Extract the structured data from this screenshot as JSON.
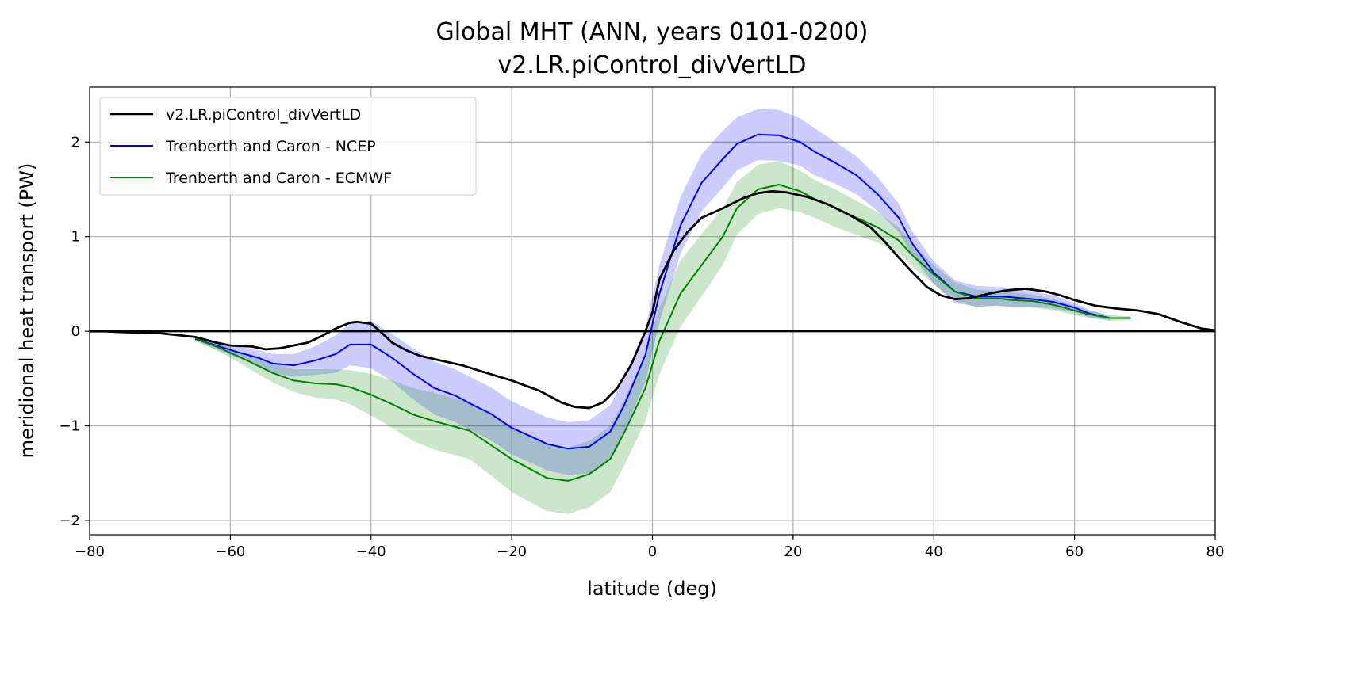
{
  "chart_data": {
    "type": "line",
    "title": "Global MHT (ANN, years 0101-0200)",
    "subtitle": "v2.LR.piControl_divVertLD",
    "xlabel": "latitude (deg)",
    "ylabel": "meridional heat transport (PW)",
    "xlim": [
      -80,
      80
    ],
    "ylim": [
      -2.15,
      2.58
    ],
    "xticks": [
      -80,
      -60,
      -40,
      -20,
      0,
      20,
      40,
      60,
      80
    ],
    "xtick_labels": [
      "−80",
      "−60",
      "−40",
      "−20",
      "0",
      "20",
      "40",
      "60",
      "80"
    ],
    "yticks": [
      -2,
      -1,
      0,
      1,
      2
    ],
    "ytick_labels": [
      "−2",
      "−1",
      "0",
      "1",
      "2"
    ],
    "grid": true,
    "legend_position": "top-left",
    "series": [
      {
        "name": "v2.LR.piControl_divVertLD",
        "color": "#000000",
        "x": [
          -80,
          -78,
          -75,
          -70,
          -65,
          -62,
          -60,
          -57,
          -55,
          -53,
          -51,
          -49,
          -47,
          -45,
          -43,
          -42,
          -40,
          -39,
          -37,
          -35,
          -33,
          -30,
          -27,
          -24,
          -20,
          -16,
          -13,
          -11,
          -9,
          -7,
          -5,
          -3,
          -1,
          0,
          1,
          3,
          5,
          7,
          10,
          13,
          15,
          17,
          19,
          22,
          25,
          28,
          31,
          33,
          35,
          37,
          39,
          41,
          43,
          45,
          48,
          50,
          53,
          56,
          58,
          60,
          63,
          66,
          69,
          72,
          75,
          78,
          80
        ],
        "y": [
          0,
          0,
          -0.01,
          -0.02,
          -0.06,
          -0.12,
          -0.15,
          -0.16,
          -0.19,
          -0.18,
          -0.15,
          -0.12,
          -0.05,
          0.03,
          0.09,
          0.1,
          0.08,
          0.02,
          -0.12,
          -0.2,
          -0.26,
          -0.31,
          -0.36,
          -0.43,
          -0.52,
          -0.63,
          -0.75,
          -0.8,
          -0.81,
          -0.75,
          -0.6,
          -0.35,
          0,
          0.2,
          0.55,
          0.85,
          1.05,
          1.2,
          1.3,
          1.41,
          1.46,
          1.48,
          1.47,
          1.42,
          1.34,
          1.23,
          1.1,
          0.95,
          0.78,
          0.62,
          0.47,
          0.38,
          0.34,
          0.35,
          0.4,
          0.43,
          0.45,
          0.42,
          0.38,
          0.33,
          0.27,
          0.24,
          0.22,
          0.18,
          0.1,
          0.03,
          0.01
        ]
      },
      {
        "name": "Trenberth and Caron - NCEP",
        "color": "#0000ff",
        "band_color": "#ccccff",
        "x": [
          -65,
          -62,
          -59,
          -56,
          -54,
          -51,
          -48,
          -45,
          -43,
          -40,
          -37,
          -34,
          -31,
          -28,
          -26,
          -23,
          -20,
          -17,
          -15,
          -12,
          -9,
          -6,
          -4,
          -1,
          1,
          4,
          7,
          10,
          12,
          15,
          18,
          21,
          23,
          26,
          29,
          32,
          35,
          37,
          40,
          43,
          46,
          49,
          51,
          54,
          57,
          60,
          62,
          65
        ],
        "y": [
          -0.08,
          -0.15,
          -0.22,
          -0.28,
          -0.34,
          -0.36,
          -0.31,
          -0.24,
          -0.14,
          -0.14,
          -0.28,
          -0.45,
          -0.6,
          -0.68,
          -0.76,
          -0.87,
          -1.02,
          -1.12,
          -1.19,
          -1.24,
          -1.22,
          -1.06,
          -0.78,
          -0.25,
          0.4,
          1.12,
          1.57,
          1.82,
          1.98,
          2.08,
          2.07,
          2.0,
          1.9,
          1.78,
          1.65,
          1.45,
          1.2,
          0.92,
          0.62,
          0.42,
          0.37,
          0.37,
          0.36,
          0.34,
          0.31,
          0.25,
          0.19,
          0.14
        ],
        "uncertainty": [
          0.02,
          0.04,
          0.06,
          0.08,
          0.1,
          0.12,
          0.15,
          0.2,
          0.22,
          0.25,
          0.25,
          0.27,
          0.28,
          0.28,
          0.28,
          0.28,
          0.28,
          0.28,
          0.28,
          0.28,
          0.28,
          0.28,
          0.28,
          0.28,
          0.3,
          0.3,
          0.3,
          0.3,
          0.28,
          0.27,
          0.27,
          0.25,
          0.25,
          0.22,
          0.2,
          0.18,
          0.15,
          0.13,
          0.12,
          0.12,
          0.11,
          0.1,
          0.1,
          0.08,
          0.07,
          0.05,
          0.04,
          0.02
        ]
      },
      {
        "name": "Trenberth and Caron - ECMWF",
        "color": "#008000",
        "band_color": "#cce6cc",
        "x": [
          -65,
          -62,
          -59,
          -57,
          -54,
          -51,
          -48,
          -45,
          -43,
          -40,
          -37,
          -34,
          -31,
          -29,
          -26,
          -23,
          -20,
          -17,
          -15,
          -12,
          -9,
          -6,
          -4,
          -1,
          1,
          4,
          7,
          10,
          12,
          15,
          18,
          21,
          23,
          26,
          29,
          32,
          35,
          37,
          40,
          43,
          46,
          49,
          51,
          54,
          57,
          60,
          62,
          65,
          68
        ],
        "y": [
          -0.08,
          -0.16,
          -0.26,
          -0.33,
          -0.44,
          -0.52,
          -0.55,
          -0.56,
          -0.59,
          -0.67,
          -0.77,
          -0.88,
          -0.95,
          -0.99,
          -1.05,
          -1.2,
          -1.35,
          -1.47,
          -1.55,
          -1.58,
          -1.51,
          -1.35,
          -1.07,
          -0.6,
          -0.1,
          0.4,
          0.7,
          1.0,
          1.3,
          1.5,
          1.55,
          1.48,
          1.4,
          1.3,
          1.2,
          1.1,
          0.96,
          0.8,
          0.6,
          0.42,
          0.35,
          0.35,
          0.33,
          0.32,
          0.28,
          0.22,
          0.18,
          0.14,
          0.14
        ],
        "uncertainty": [
          0.02,
          0.04,
          0.06,
          0.08,
          0.1,
          0.12,
          0.15,
          0.16,
          0.18,
          0.22,
          0.25,
          0.28,
          0.3,
          0.3,
          0.3,
          0.32,
          0.35,
          0.35,
          0.35,
          0.35,
          0.35,
          0.35,
          0.35,
          0.35,
          0.35,
          0.35,
          0.33,
          0.3,
          0.28,
          0.26,
          0.25,
          0.22,
          0.2,
          0.2,
          0.18,
          0.16,
          0.14,
          0.12,
          0.1,
          0.1,
          0.09,
          0.08,
          0.08,
          0.07,
          0.06,
          0.05,
          0.04,
          0.03,
          0.02
        ]
      }
    ]
  }
}
